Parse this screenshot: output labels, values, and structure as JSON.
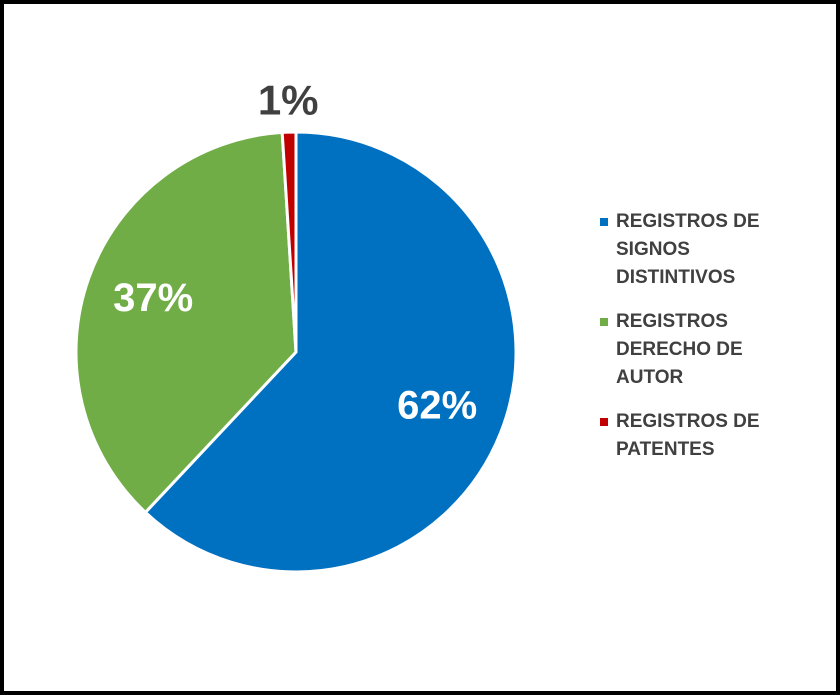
{
  "chart_data": {
    "type": "pie",
    "categories": [
      "REGISTROS DE SIGNOS DISTINTIVOS",
      "REGISTROS DERECHO DE AUTOR",
      "REGISTROS DE PATENTES"
    ],
    "values": [
      62,
      37,
      1
    ],
    "value_labels": [
      "62%",
      "37%",
      "1%"
    ],
    "colors": [
      "#0070c0",
      "#70ad47",
      "#c00000"
    ],
    "legend": "right"
  }
}
